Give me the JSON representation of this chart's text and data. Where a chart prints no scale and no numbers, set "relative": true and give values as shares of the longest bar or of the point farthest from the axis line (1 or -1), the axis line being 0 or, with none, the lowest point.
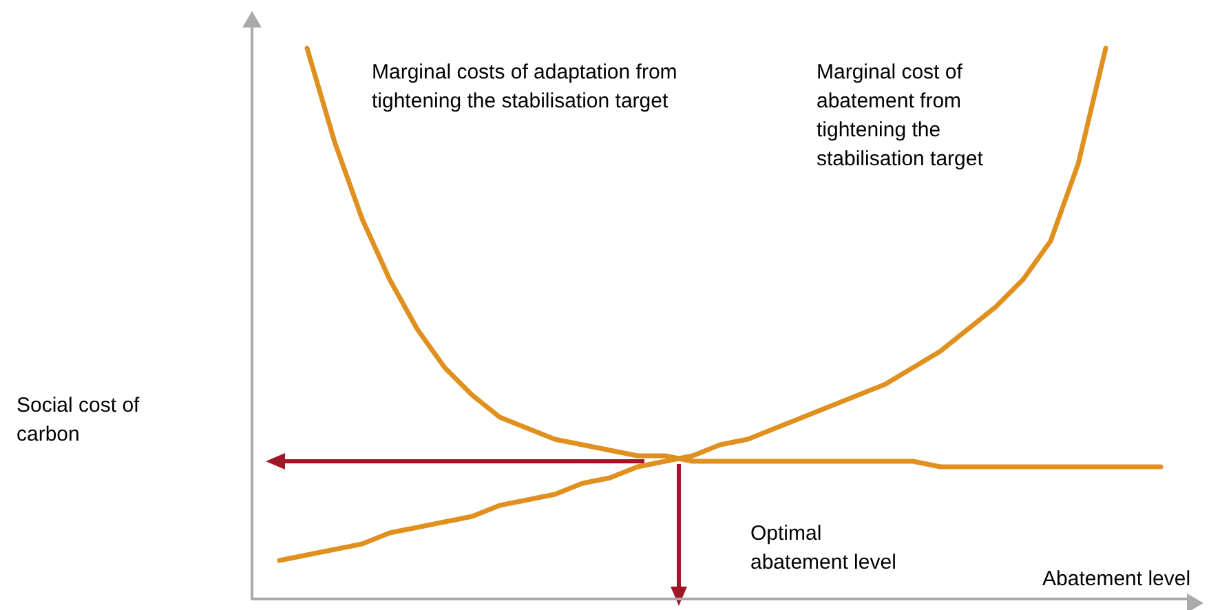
{
  "chart_data": {
    "type": "line",
    "relative": true,
    "xlabel": "Abatement level",
    "categories": [
      null,
      null,
      null,
      null,
      null,
      null,
      null,
      null,
      null,
      null,
      null,
      null,
      null,
      null,
      null,
      null,
      null,
      null,
      null,
      null,
      null,
      null,
      null,
      null,
      null,
      null,
      null,
      null,
      null,
      null,
      null,
      null,
      null,
      null,
      null
    ],
    "series": [
      {
        "color": "#e0901e",
        "values": [
          null,
          null,
          1.0,
          0.83,
          0.69,
          0.58,
          0.49,
          0.42,
          0.37,
          0.33,
          0.31,
          0.29,
          0.28,
          0.27,
          0.26,
          0.26,
          0.25,
          0.25,
          0.25,
          0.25,
          0.25,
          0.25,
          0.25,
          0.25,
          0.25,
          0.24,
          0.24,
          0.24,
          0.24,
          0.24,
          0.24,
          0.24,
          0.24,
          0.24,
          null
        ]
      },
      {
        "color": "#e0901e",
        "values": [
          null,
          0.07,
          0.08,
          0.09,
          0.1,
          0.12,
          0.13,
          0.14,
          0.15,
          0.17,
          0.18,
          0.19,
          0.21,
          0.22,
          0.24,
          0.25,
          0.26,
          0.28,
          0.29,
          0.31,
          0.33,
          0.35,
          0.37,
          0.39,
          0.42,
          0.45,
          0.49,
          0.53,
          0.58,
          0.65,
          0.79,
          1.0,
          null,
          null,
          null
        ]
      }
    ],
    "annotations": [
      "Marginal costs of adaptation from tightening the stabilisation target",
      "Marginal cost of abatement from tightening the stabilisation target",
      "Optimal abatement level",
      "Social cost of carbon"
    ],
    "grid": false,
    "marker": "none",
    "line_style": "solid"
  }
}
